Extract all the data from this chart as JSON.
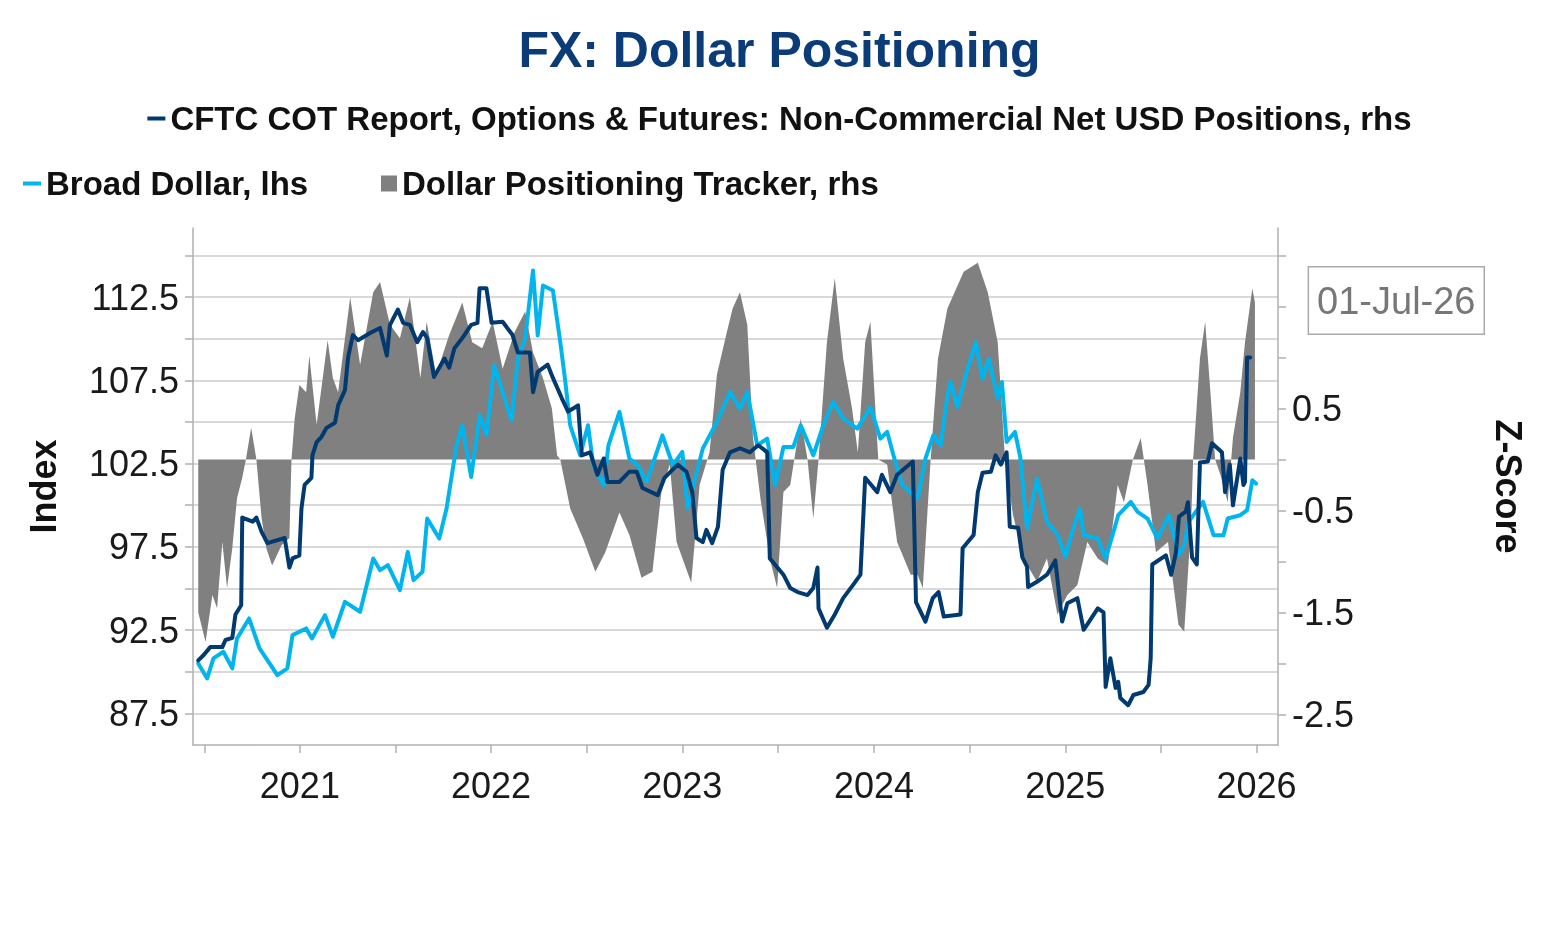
{
  "chart_data": {
    "type": "line",
    "title": "FX: Dollar Positioning",
    "ylabel": "Index",
    "y2label": "Z-Score",
    "xlim": [
      "2020-12-10",
      "2026-08-12"
    ],
    "xticks": [
      {
        "value": "2021-01-01",
        "label": null
      },
      {
        "value": "2021-07-02",
        "label": "2021"
      },
      {
        "value": "2022-01-01",
        "label": null
      },
      {
        "value": "2022-07-02",
        "label": "2022"
      },
      {
        "value": "2023-01-01",
        "label": null
      },
      {
        "value": "2023-07-02",
        "label": "2023"
      },
      {
        "value": "2024-01-01",
        "label": null
      },
      {
        "value": "2024-07-02",
        "label": "2024"
      },
      {
        "value": "2025-01-01",
        "label": null
      },
      {
        "value": "2025-07-02",
        "label": "2025"
      },
      {
        "value": "2026-01-01",
        "label": null
      },
      {
        "value": "2026-07-02",
        "label": "2026"
      }
    ],
    "ylim": [
      85.6,
      116.65
    ],
    "yticks": [
      87.5,
      {
        "value": 90,
        "label": null
      },
      92.5,
      {
        "value": 95,
        "label": null
      },
      97.5,
      {
        "value": 100,
        "label": null
      },
      102.5,
      {
        "value": 105,
        "label": null
      },
      107.5,
      {
        "value": 110,
        "label": null
      },
      112.5,
      {
        "value": 115,
        "label": null
      }
    ],
    "y2lim": [
      -2.8,
      2.27
    ],
    "y2ticks": [
      -2.5,
      {
        "value": -2,
        "label": null
      },
      -1.5,
      {
        "value": -1,
        "label": null
      },
      -0.5,
      {
        "value": 0,
        "label": null
      },
      0.5,
      {
        "value": 1,
        "label": null
      },
      {
        "value": 1.5,
        "label": null
      },
      {
        "value": 2,
        "label": null
      }
    ],
    "grid": "y",
    "legend": "top",
    "annotations": [
      "01-Jul-26"
    ],
    "series": [
      {
        "name": "CFTC COT Report, Options & Futures: Non-Commercial Net USD Positions, rhs",
        "color": "#003a70",
        "axis": "y2",
        "x": [
          "2020-12-20",
          "2020-12-30",
          "2021-01-12",
          "2021-02-04",
          "2021-02-10",
          "2021-02-23",
          "2021-03-01",
          "2021-03-12",
          "2021-03-14",
          "2021-04-03",
          "2021-04-10",
          "2021-04-20",
          "2021-05-01",
          "2021-06-03",
          "2021-06-12",
          "2021-06-18",
          "2021-07-01",
          "2021-07-05",
          "2021-07-11",
          "2021-07-24",
          "2021-07-26",
          "2021-08-03",
          "2021-08-12",
          "2021-08-22",
          "2021-09-07",
          "2021-09-13",
          "2021-09-26",
          "2021-10-02",
          "2021-10-11",
          "2021-10-21",
          "2021-11-13",
          "2021-12-02",
          "2021-12-15",
          "2021-12-21",
          "2022-01-05",
          "2022-01-15",
          "2022-01-28",
          "2022-02-11",
          "2022-02-22",
          "2022-03-02",
          "2022-03-15",
          "2022-04-04",
          "2022-04-13",
          "2022-04-23",
          "2022-05-08",
          "2022-05-25",
          "2022-06-06",
          "2022-06-10",
          "2022-06-23",
          "2022-07-03",
          "2022-07-24",
          "2022-08-12",
          "2022-08-22",
          "2022-09-14",
          "2022-09-20",
          "2022-09-29",
          "2022-10-18",
          "2022-10-28",
          "2022-11-14",
          "2022-11-26",
          "2022-12-15",
          "2022-12-22",
          "2023-01-07",
          "2023-01-21",
          "2023-02-02",
          "2023-02-09",
          "2023-03-04",
          "2023-03-23",
          "2023-04-06",
          "2023-04-17",
          "2023-05-16",
          "2023-05-29",
          "2023-06-23",
          "2023-07-10",
          "2023-07-21",
          "2023-07-29",
          "2023-08-10",
          "2023-08-17",
          "2023-08-28",
          "2023-09-08",
          "2023-09-17",
          "2023-10-01",
          "2023-10-20",
          "2023-11-08",
          "2023-11-24",
          "2023-12-11",
          "2023-12-16",
          "2024-01-11",
          "2024-01-24",
          "2024-02-07",
          "2024-02-26",
          "2024-03-08",
          "2024-03-16",
          "2024-03-18",
          "2024-04-03",
          "2024-04-18",
          "2024-05-04",
          "2024-05-23",
          "2024-06-06",
          "2024-06-15",
          "2024-07-08",
          "2024-07-17",
          "2024-08-02",
          "2024-08-15",
          "2024-09-14",
          "2024-09-20",
          "2024-10-08",
          "2024-10-22",
          "2024-11-02",
          "2024-11-12",
          "2024-12-14",
          "2024-12-18",
          "2025-01-08",
          "2025-01-16",
          "2025-01-25",
          "2025-02-10",
          "2025-02-19",
          "2025-03-01",
          "2025-03-12",
          "2025-03-18",
          "2025-04-03",
          "2025-04-11",
          "2025-04-20",
          "2025-04-22",
          "2025-05-09",
          "2025-05-28",
          "2025-06-13",
          "2025-06-26",
          "2025-07-06",
          "2025-07-25",
          "2025-08-06",
          "2025-08-19",
          "2025-09-02",
          "2025-09-13",
          "2025-09-17",
          "2025-09-26",
          "2025-10-06",
          "2025-10-11",
          "2025-10-15",
          "2025-10-30",
          "2025-11-09",
          "2025-11-28",
          "2025-12-08",
          "2025-12-12",
          "2025-12-15",
          "2026-01-10",
          "2026-01-20",
          "2026-01-29",
          "2026-02-04",
          "2026-02-17",
          "2026-02-21",
          "2026-03-01",
          "2026-03-10",
          "2026-03-16",
          "2026-03-31",
          "2026-04-08",
          "2026-04-27",
          "2026-05-03",
          "2026-05-12",
          "2026-05-18",
          "2026-06-01",
          "2026-06-07",
          "2026-06-10",
          "2026-06-14",
          "2026-06-20"
        ],
        "values": [
          -1.97,
          -1.92,
          -1.84,
          -1.84,
          -1.77,
          -1.75,
          -1.52,
          -1.43,
          -0.57,
          -0.61,
          -0.57,
          -0.71,
          -0.82,
          -0.77,
          -1.06,
          -0.97,
          -0.94,
          -0.48,
          -0.25,
          -0.18,
          0.04,
          0.17,
          0.22,
          0.31,
          0.36,
          0.53,
          0.68,
          1.0,
          1.22,
          1.17,
          1.24,
          1.29,
          1.02,
          1.32,
          1.47,
          1.34,
          1.32,
          1.15,
          1.25,
          1.19,
          0.81,
          0.99,
          0.9,
          1.09,
          1.19,
          1.32,
          1.34,
          1.68,
          1.68,
          1.34,
          1.35,
          1.22,
          1.05,
          1.05,
          0.66,
          0.86,
          0.93,
          0.8,
          0.6,
          0.47,
          0.53,
          0.04,
          0.07,
          -0.15,
          0.01,
          -0.22,
          -0.22,
          -0.12,
          -0.12,
          -0.28,
          -0.35,
          -0.18,
          -0.05,
          -0.12,
          -0.32,
          -0.77,
          -0.81,
          -0.69,
          -0.82,
          -0.66,
          -0.1,
          0.07,
          0.11,
          0.07,
          0.14,
          0.07,
          -0.97,
          -1.13,
          -1.26,
          -1.3,
          -1.33,
          -1.26,
          -1.06,
          -1.46,
          -1.65,
          -1.52,
          -1.36,
          -1.23,
          -1.13,
          -0.18,
          -0.32,
          -0.15,
          -0.32,
          -0.15,
          -0.02,
          -1.4,
          -1.59,
          -1.36,
          -1.3,
          -1.54,
          -1.52,
          -0.87,
          -0.74,
          -0.32,
          -0.13,
          -0.12,
          0.04,
          -0.05,
          0.07,
          -0.66,
          -0.67,
          -0.96,
          -1.05,
          -1.25,
          -1.2,
          -1.13,
          -0.99,
          -1.59,
          -1.41,
          -1.36,
          -1.67,
          -1.57,
          -1.46,
          -1.5,
          -2.23,
          -1.95,
          -2.24,
          -2.18,
          -2.34,
          -2.41,
          -2.31,
          -2.28,
          -2.21,
          -1.95,
          -1.03,
          -0.94,
          -1.13,
          -0.92,
          -0.56,
          -0.51,
          -0.42,
          -0.96,
          -1.03,
          -0.03,
          -0.02,
          0.16,
          0.07,
          -0.32,
          -0.05,
          -0.45,
          0.01,
          -0.25,
          -0.22,
          1.0,
          1.0
        ]
      },
      {
        "name": "Broad Dollar, lhs",
        "color": "#00b5ee",
        "x": [
          "2020-12-20",
          "2021-01-06",
          "2021-01-18",
          "2021-02-06",
          "2021-02-23",
          "2021-03-04",
          "2021-03-27",
          "2021-04-16",
          "2021-05-20",
          "2021-06-08",
          "2021-06-18",
          "2021-07-14",
          "2021-07-25",
          "2021-08-19",
          "2021-09-03",
          "2021-09-26",
          "2021-10-25",
          "2021-11-19",
          "2021-12-02",
          "2021-12-17",
          "2022-01-09",
          "2022-01-24",
          "2022-02-04",
          "2022-02-21",
          "2022-03-02",
          "2022-03-25",
          "2022-04-08",
          "2022-04-27",
          "2022-05-08",
          "2022-05-25",
          "2022-06-10",
          "2022-06-23",
          "2022-07-08",
          "2022-07-24",
          "2022-08-10",
          "2022-08-22",
          "2022-09-05",
          "2022-09-20",
          "2022-09-29",
          "2022-10-09",
          "2022-10-28",
          "2022-11-11",
          "2022-11-20",
          "2022-11-30",
          "2022-12-19",
          "2023-01-03",
          "2023-01-13",
          "2023-02-02",
          "2023-02-11",
          "2023-03-04",
          "2023-03-23",
          "2023-04-08",
          "2023-04-25",
          "2023-05-25",
          "2023-06-14",
          "2023-07-02",
          "2023-07-12",
          "2023-08-10",
          "2023-09-06",
          "2023-10-01",
          "2023-10-20",
          "2023-11-03",
          "2023-11-22",
          "2023-12-11",
          "2023-12-26",
          "2024-01-11",
          "2024-01-30",
          "2024-02-13",
          "2024-03-08",
          "2024-03-27",
          "2024-04-15",
          "2024-05-04",
          "2024-05-31",
          "2024-06-25",
          "2024-07-14",
          "2024-07-27",
          "2024-08-08",
          "2024-08-25",
          "2024-09-23",
          "2024-10-08",
          "2024-10-23",
          "2024-11-06",
          "2024-11-19",
          "2024-11-25",
          "2024-12-08",
          "2024-12-24",
          "2025-01-12",
          "2025-01-25",
          "2025-02-06",
          "2025-02-23",
          "2025-03-03",
          "2025-03-12",
          "2025-03-28",
          "2025-04-07",
          "2025-04-20",
          "2025-05-09",
          "2025-05-28",
          "2025-06-18",
          "2025-07-02",
          "2025-07-17",
          "2025-07-30",
          "2025-08-06",
          "2025-09-02",
          "2025-09-17",
          "2025-10-02",
          "2025-10-11",
          "2025-11-04",
          "2025-11-17",
          "2025-12-06",
          "2025-12-25",
          "2026-01-16",
          "2026-02-03",
          "2026-02-14",
          "2026-02-22",
          "2026-03-22",
          "2026-04-11",
          "2026-04-30",
          "2026-05-08",
          "2026-06-01",
          "2026-06-14",
          "2026-06-24",
          "2026-07-01"
        ],
        "values": [
          90.5,
          89.6,
          90.8,
          91.2,
          90.2,
          92.0,
          93.2,
          91.4,
          89.8,
          90.2,
          92.2,
          92.6,
          92.0,
          93.4,
          92.1,
          94.2,
          93.6,
          96.8,
          96.1,
          96.4,
          94.9,
          97.2,
          95.5,
          96.0,
          99.2,
          98.0,
          99.8,
          103.6,
          104.8,
          101.7,
          105.4,
          104.2,
          108.4,
          106.8,
          105.1,
          108.8,
          110.0,
          114.1,
          110.2,
          113.2,
          112.9,
          109.8,
          107.6,
          104.8,
          103.0,
          104.8,
          102.4,
          101.2,
          103.6,
          105.6,
          102.8,
          102.4,
          101.4,
          104.2,
          102.4,
          103.2,
          99.8,
          103.4,
          105.0,
          106.8,
          105.8,
          106.8,
          103.6,
          104.0,
          101.2,
          103.5,
          103.5,
          104.8,
          103.0,
          104.8,
          106.2,
          105.2,
          104.6,
          105.9,
          104.0,
          104.4,
          103.0,
          101.2,
          100.4,
          102.8,
          104.2,
          103.6,
          106.6,
          107.4,
          105.9,
          107.8,
          109.8,
          107.6,
          108.8,
          106.4,
          107.4,
          103.8,
          104.4,
          102.9,
          98.6,
          101.6,
          99.0,
          98.2,
          96.9,
          98.6,
          99.8,
          98.2,
          98.0,
          96.8,
          98.4,
          99.4,
          100.2,
          99.6,
          99.2,
          98.0,
          99.4,
          97.0,
          97.6,
          99.0,
          100.2,
          98.2,
          98.2,
          99.2,
          99.4,
          99.7,
          101.5,
          101.3
        ]
      },
      {
        "name": "Dollar Positioning Tracker, rhs",
        "color": "#808080",
        "axis": "y2",
        "type": "area",
        "x": [
          "2020-12-20",
          "2021-01-03",
          "2021-01-16",
          "2021-01-25",
          "2021-02-04",
          "2021-02-13",
          "2021-02-23",
          "2021-03-04",
          "2021-03-14",
          "2021-03-21",
          "2021-03-31",
          "2021-04-10",
          "2021-04-20",
          "2021-04-29",
          "2021-05-10",
          "2021-05-28",
          "2021-06-12",
          "2021-06-16",
          "2021-06-22",
          "2021-07-01",
          "2021-07-14",
          "2021-07-20",
          "2021-08-03",
          "2021-08-24",
          "2021-09-03",
          "2021-09-13",
          "2021-10-06",
          "2021-10-25",
          "2021-11-19",
          "2021-12-02",
          "2021-12-21",
          "2022-01-09",
          "2022-01-28",
          "2022-02-17",
          "2022-03-01",
          "2022-03-19",
          "2022-04-13",
          "2022-05-08",
          "2022-05-27",
          "2022-06-15",
          "2022-07-05",
          "2022-07-24",
          "2022-08-16",
          "2022-09-05",
          "2022-09-20",
          "2022-10-09",
          "2022-10-26",
          "2022-11-05",
          "2022-11-11",
          "2022-11-30",
          "2022-12-24",
          "2023-01-17",
          "2023-02-05",
          "2023-03-04",
          "2023-03-23",
          "2023-04-15",
          "2023-05-06",
          "2023-05-23",
          "2023-06-08",
          "2023-06-21",
          "2023-07-19",
          "2023-08-04",
          "2023-08-23",
          "2023-09-06",
          "2023-09-25",
          "2023-10-06",
          "2023-10-20",
          "2023-11-03",
          "2023-11-14",
          "2023-11-28",
          "2023-12-16",
          "2023-12-30",
          "2024-01-11",
          "2024-01-24",
          "2024-02-13",
          "2024-02-26",
          "2024-03-08",
          "2024-03-18",
          "2024-04-03",
          "2024-04-18",
          "2024-05-04",
          "2024-05-21",
          "2024-06-01",
          "2024-06-15",
          "2024-06-25",
          "2024-07-10",
          "2024-07-27",
          "2024-08-15",
          "2024-09-10",
          "2024-09-23",
          "2024-10-03",
          "2024-10-18",
          "2024-11-01",
          "2024-11-19",
          "2024-12-20",
          "2025-01-16",
          "2025-02-04",
          "2025-02-23",
          "2025-03-09",
          "2025-03-24",
          "2025-04-13",
          "2025-05-09",
          "2025-05-28",
          "2025-06-17",
          "2025-07-06",
          "2025-07-25",
          "2025-08-13",
          "2025-09-02",
          "2025-09-21",
          "2025-10-10",
          "2025-10-22",
          "2025-11-08",
          "2025-11-23",
          "2025-12-06",
          "2025-12-22",
          "2026-01-14",
          "2026-02-03",
          "2026-02-14",
          "2026-02-27",
          "2026-03-03",
          "2026-03-16",
          "2026-03-26",
          "2026-04-05",
          "2026-04-14",
          "2026-04-24",
          "2026-05-08",
          "2026-05-18",
          "2026-06-01",
          "2026-06-10",
          "2026-06-24",
          "2026-06-29"
        ],
        "values": [
          -1.5,
          -1.79,
          -1.33,
          -1.46,
          -0.81,
          -1.26,
          -0.87,
          -0.38,
          -0.18,
          0,
          0.31,
          0,
          -0.58,
          -0.87,
          -1.04,
          -0.84,
          -0.77,
          0,
          0.4,
          0.73,
          0.66,
          1.02,
          0.34,
          1.17,
          0.8,
          0.66,
          1.59,
          0.93,
          1.64,
          1.74,
          1.32,
          1.19,
          1.59,
          0.8,
          1.35,
          0.83,
          1.22,
          1.54,
          1.15,
          1.09,
          1.35,
          0.89,
          1.25,
          1.45,
          1.05,
          0.8,
          0.5,
          0.04,
          0,
          -0.48,
          -0.77,
          -1.1,
          -0.91,
          -0.52,
          -0.74,
          -1.16,
          -1.1,
          -0.32,
          -0.05,
          -0.81,
          -1.21,
          -0.25,
          0.07,
          0.83,
          1.25,
          1.48,
          1.64,
          1.32,
          0.21,
          -0.38,
          -0.97,
          -1.26,
          -0.32,
          -0.25,
          0.4,
          0,
          -0.58,
          0,
          1.15,
          1.78,
          0.99,
          0.5,
          0.07,
          1.15,
          1.35,
          0,
          -0.05,
          -0.81,
          -1.13,
          -1.13,
          -1.26,
          0,
          0.99,
          1.48,
          1.84,
          1.93,
          1.64,
          1.15,
          0,
          -0.54,
          -0.97,
          -1.2,
          -0.97,
          -1.52,
          -1.33,
          -1.23,
          -0.81,
          -0.97,
          -1.04,
          -0.25,
          -0.42,
          0,
          0.21,
          -0.25,
          -0.91,
          -0.81,
          -1.62,
          -1.69,
          -0.64,
          0,
          0.99,
          1.35,
          0.66,
          0,
          -0.15,
          -0.42,
          0.21,
          0.66,
          1.15,
          1.68,
          1.54
        ]
      }
    ]
  }
}
